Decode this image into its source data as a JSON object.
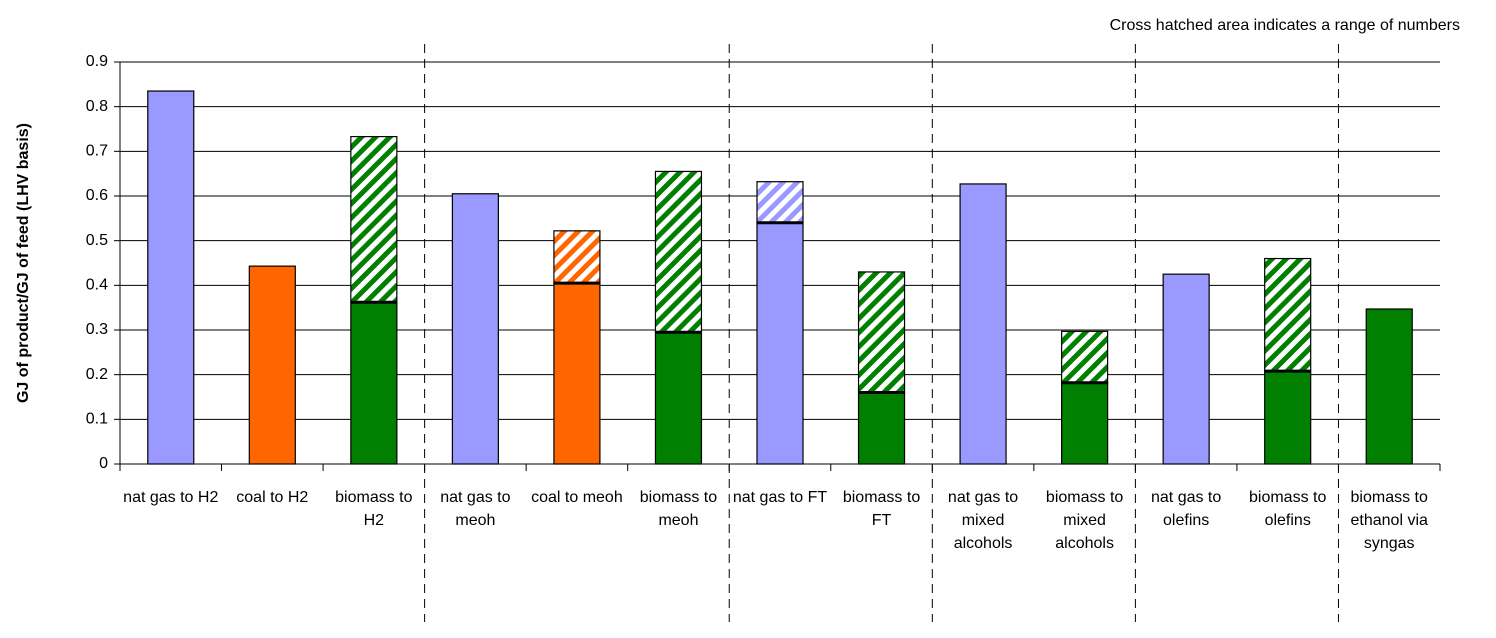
{
  "chart_data": {
    "type": "bar",
    "stacked": true,
    "annotation": "Cross hatched area indicates a range of numbers",
    "y_label": "GJ of product/GJ of feed (LHV basis)",
    "categories": [
      "nat gas to H2",
      "coal to H2",
      "biomass to H2",
      "nat gas to meoh",
      "coal to meoh",
      "biomass to meoh",
      "nat gas to FT",
      "biomass to FT",
      "nat gas to mixed alcohols",
      "biomass to mixed alcohols",
      "nat gas to olefins",
      "biomass to olefins",
      "biomass to ethanol via syngas"
    ],
    "colors": [
      "#9999ff",
      "#ff6600",
      "#007f00",
      "#9999ff",
      "#ff6600",
      "#007f00",
      "#9999ff",
      "#007f00",
      "#9999ff",
      "#007f00",
      "#9999ff",
      "#007f00",
      "#007f00"
    ],
    "series": [
      {
        "values": [
          0.835,
          0.443,
          0.362,
          0.605,
          0.405,
          0.295,
          0.54,
          0.16,
          0.627,
          0.182,
          0.425,
          0.208,
          0.347
        ]
      },
      {
        "hatched": true,
        "values": [
          null,
          null,
          0.371,
          null,
          0.117,
          0.36,
          0.092,
          0.27,
          null,
          0.115,
          null,
          0.252,
          null
        ]
      }
    ],
    "dividers_after": [
      2,
      5,
      7,
      9,
      11
    ],
    "ylim": [
      0,
      0.9
    ],
    "yticks": [
      0,
      0.1,
      0.2,
      0.3,
      0.4,
      0.5,
      0.6,
      0.7,
      0.8,
      0.9
    ],
    "grid": true
  }
}
